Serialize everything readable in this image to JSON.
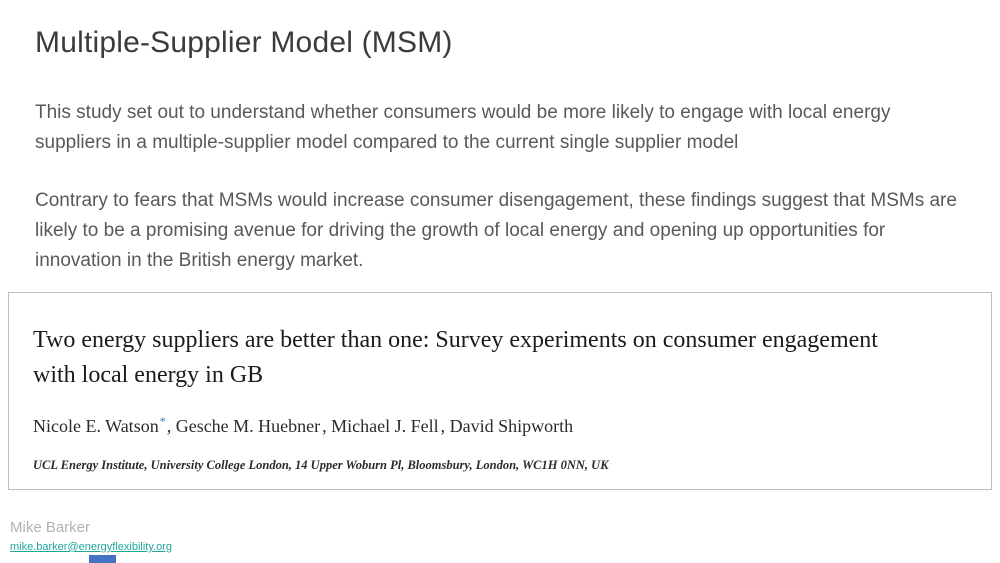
{
  "slide": {
    "title": "Multiple-Supplier Model (MSM)",
    "paragraph1": "This study set out to understand whether consumers would be more likely to engage with local energy suppliers in a multiple-supplier model compared to the current single supplier model",
    "paragraph2": "Contrary to fears that MSMs would increase consumer disengagement, these findings suggest that MSMs are likely to be a promising avenue for driving the growth of local energy and opening up opportunities for innovation in the British energy market."
  },
  "paper": {
    "title": "Two energy suppliers are better than one: Survey experiments on consumer engagement with local energy in GB",
    "authors": [
      {
        "name": "Nicole E. Watson",
        "marker": "*",
        "sep": ", "
      },
      {
        "name": "Gesche M. Huebner",
        "sep": ", "
      },
      {
        "name": "Michael J. Fell",
        "sep": ", "
      },
      {
        "name": "David Shipworth",
        "sep": ""
      }
    ],
    "affiliation": "UCL Energy Institute, University College London, 14 Upper Woburn Pl, Bloomsbury, London, WC1H 0NN, UK"
  },
  "footer": {
    "name": "Mike Barker",
    "email": "mike.barker@energyflexibility.org"
  },
  "colors": {
    "heading": "#3b3b3b",
    "body": "#595959",
    "link": "#21a69a",
    "marker": "#2e74b5",
    "accent": "#4472c4",
    "card_border": "#bdbdbd"
  }
}
